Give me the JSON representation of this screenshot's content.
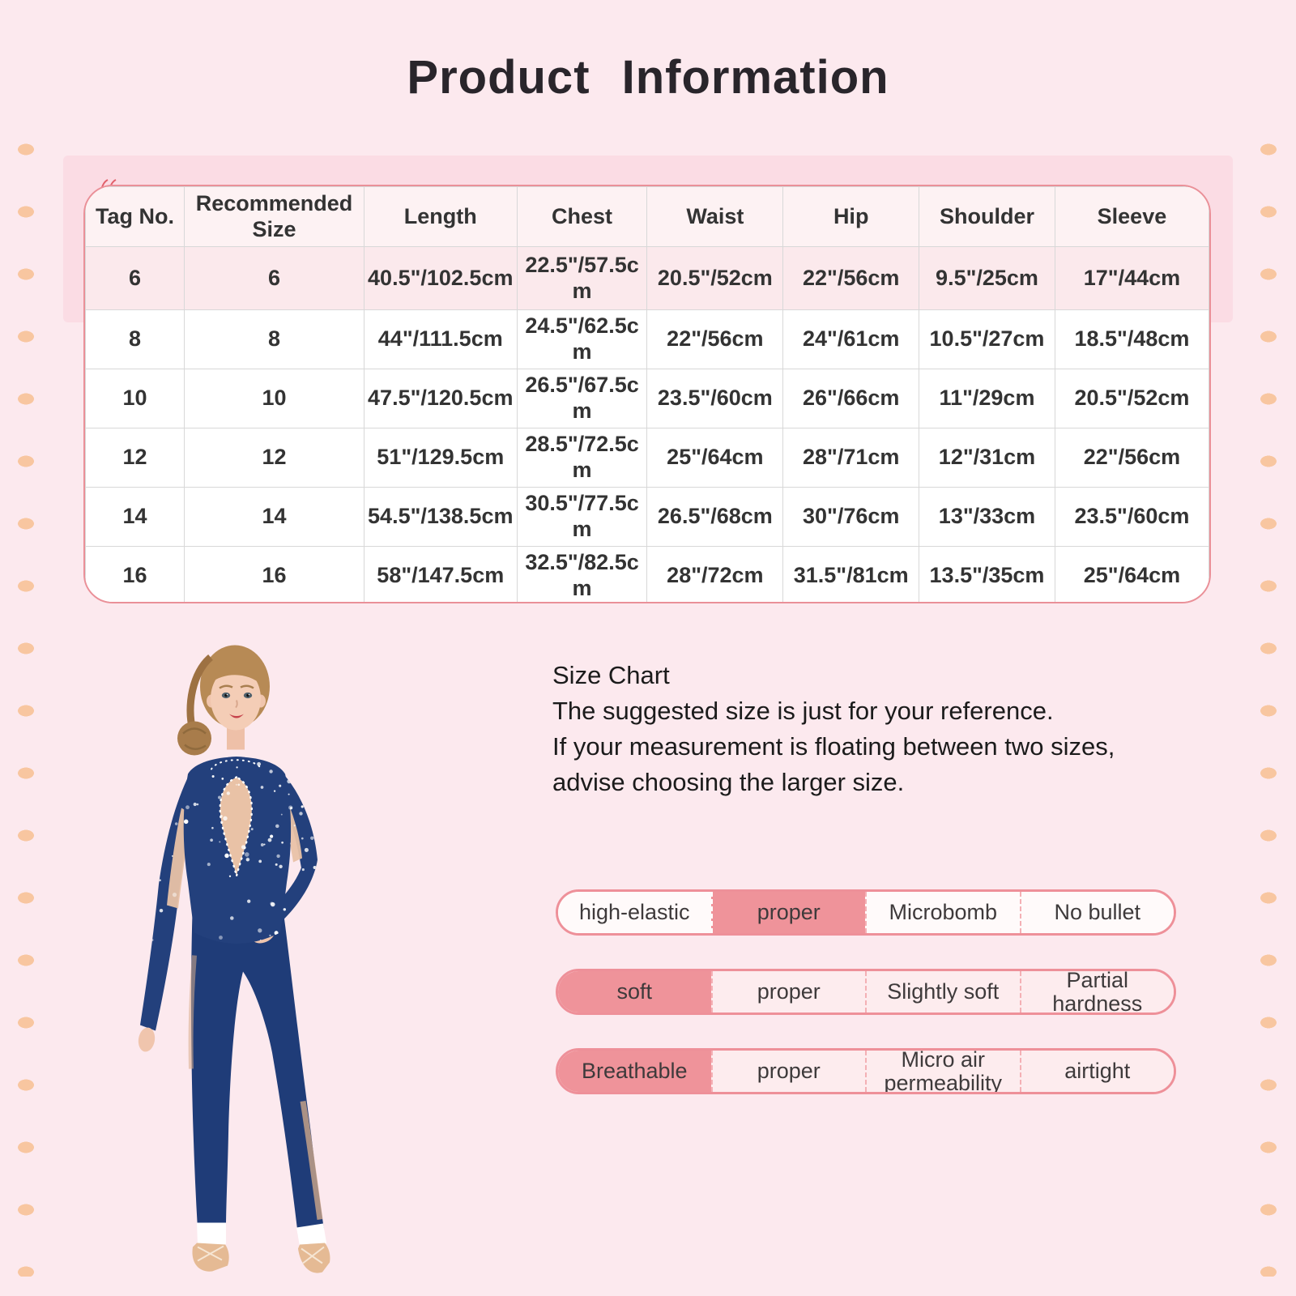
{
  "page": {
    "title": "Product  Information"
  },
  "size_table": {
    "columns": [
      "Tag No.",
      "Recommended Size",
      "Length",
      "Chest",
      "Waist",
      "Hip",
      "Shoulder",
      "Sleeve"
    ],
    "rows": [
      [
        "6",
        "6",
        "40.5\"/102.5cm",
        "22.5\"/57.5cm",
        "20.5\"/52cm",
        "22\"/56cm",
        "9.5\"/25cm",
        "17\"/44cm"
      ],
      [
        "8",
        "8",
        "44\"/111.5cm",
        "24.5\"/62.5cm",
        "22\"/56cm",
        "24\"/61cm",
        "10.5\"/27cm",
        "18.5\"/48cm"
      ],
      [
        "10",
        "10",
        "47.5\"/120.5cm",
        "26.5\"/67.5cm",
        "23.5\"/60cm",
        "26\"/66cm",
        "11\"/29cm",
        "20.5\"/52cm"
      ],
      [
        "12",
        "12",
        "51\"/129.5cm",
        "28.5\"/72.5cm",
        "25\"/64cm",
        "28\"/71cm",
        "12\"/31cm",
        "22\"/56cm"
      ],
      [
        "14",
        "14",
        "54.5\"/138.5cm",
        "30.5\"/77.5cm",
        "26.5\"/68cm",
        "30\"/76cm",
        "13\"/33cm",
        "23.5\"/60cm"
      ],
      [
        "16",
        "16",
        "58\"/147.5cm",
        "32.5\"/82.5cm",
        "28\"/72cm",
        "31.5\"/81cm",
        "13.5\"/35cm",
        "25\"/64cm"
      ]
    ]
  },
  "size_note": {
    "heading": "Size Chart",
    "lines": [
      "The suggested size is just for your reference.",
      "If your measurement is floating between two sizes,",
      "advise choosing the larger size."
    ]
  },
  "attribute_bars": [
    {
      "options": [
        "high-elastic",
        "proper",
        "Microbomb",
        "No bullet"
      ],
      "selected_index": 1
    },
    {
      "options": [
        "soft",
        "proper",
        "Slightly soft",
        "Partial hardness"
      ],
      "selected_index": 0
    },
    {
      "options": [
        "Breathable",
        "proper",
        "Micro air permeability",
        "airtight"
      ],
      "selected_index": 0
    }
  ],
  "model_photo": {
    "label": "girl wearing navy rhinestone unitard with ballet slippers"
  },
  "colors": {
    "bg": "#fce9ee",
    "panel": "#fbdce4",
    "dot": "#f8c6a0",
    "table-border": "#ea9098",
    "header-bg": "#fdf2f3",
    "first-row-bg": "#fbe9ec",
    "grid": "#d8d8d8",
    "title": "#29252b",
    "bar-border": "#ee9099",
    "bar-hl": "#ef939a",
    "bar-light": "#fffafa",
    "bar-light-alt": "#fdecee",
    "suit-navy": "#20407e",
    "mesh-nude": "#e9c2a6",
    "skin": "#f3cbb4",
    "hair": "#b78a55"
  }
}
